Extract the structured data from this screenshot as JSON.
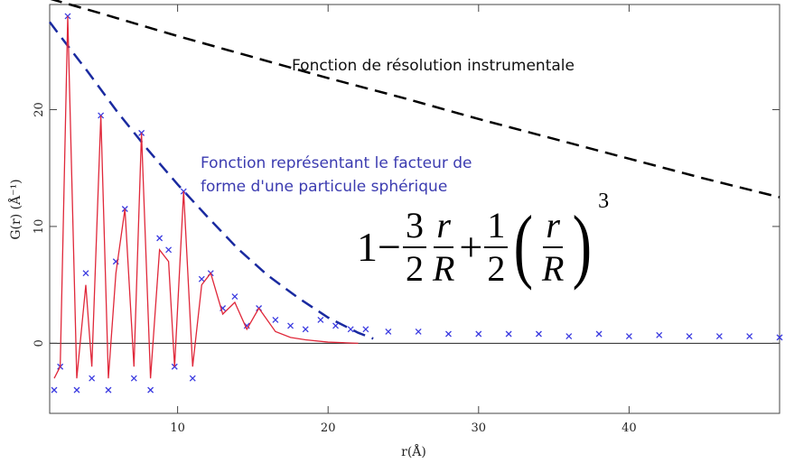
{
  "chart_data": {
    "type": "line",
    "xlabel": "r(Å)",
    "ylabel": "G(r) (Å⁻¹)",
    "xlim": [
      1.5,
      50
    ],
    "ylim": [
      -6,
      29
    ],
    "x_ticks": [
      10,
      20,
      30,
      40
    ],
    "y_ticks": [
      0,
      10,
      20
    ],
    "grid": false,
    "baseline_y": 0,
    "peak_positions": [
      2.7,
      4.9,
      6.5,
      7.6,
      10.4,
      12.2,
      15.4
    ],
    "peak_heights": [
      28,
      19.5,
      11.5,
      18,
      13,
      6,
      3
    ],
    "series": [
      {
        "type": "scatter",
        "marker": "x",
        "color": "#3a3ae0",
        "x": [
          1.8,
          2.2,
          2.7,
          3.3,
          3.9,
          4.3,
          4.9,
          5.4,
          5.9,
          6.5,
          7.1,
          7.6,
          8.2,
          8.8,
          9.4,
          9.8,
          10.4,
          11.0,
          11.6,
          12.2,
          13.0,
          13.8,
          14.6,
          15.4,
          16.5,
          17.5,
          18.5,
          19.5,
          20.5,
          21.5,
          22.5,
          24,
          26,
          28,
          30,
          32,
          34,
          36,
          38,
          40,
          42,
          44,
          46,
          48,
          50
        ],
        "values": [
          -4,
          -2,
          28,
          -4,
          6,
          -3,
          19.5,
          -4,
          7,
          11.5,
          -3,
          18,
          -4,
          9,
          8,
          -2,
          13,
          -3,
          5.5,
          6,
          3,
          4,
          1.5,
          3,
          2,
          1.5,
          1.2,
          2,
          1.5,
          1.2,
          1.2,
          1,
          1,
          0.8,
          0.8,
          0.8,
          0.8,
          0.6,
          0.8,
          0.6,
          0.7,
          0.6,
          0.6,
          0.6,
          0.5
        ]
      },
      {
        "type": "line",
        "color": "#e0283a",
        "x": [
          1.8,
          2.2,
          2.7,
          3.3,
          3.9,
          4.3,
          4.9,
          5.4,
          5.9,
          6.5,
          7.1,
          7.6,
          8.2,
          8.8,
          9.4,
          9.8,
          10.4,
          11.0,
          11.6,
          12.2,
          13.0,
          13.8,
          14.6,
          15.4,
          16.5,
          17.5,
          18.5,
          20,
          22
        ],
        "values": [
          -3,
          -2,
          28,
          -3,
          5,
          -2,
          19.5,
          -3,
          6,
          11.5,
          -2,
          18,
          -3,
          8,
          7,
          -2,
          13,
          -2,
          5,
          6,
          2.5,
          3.5,
          1.2,
          3,
          1,
          0.5,
          0.3,
          0.1,
          0
        ]
      },
      {
        "type": "dashed",
        "color": "#000000",
        "x": [
          1.5,
          5,
          10,
          15,
          20,
          25,
          30,
          35,
          40,
          45,
          50
        ],
        "values": [
          29.5,
          28.2,
          26.3,
          24.5,
          22.7,
          21,
          19.2,
          17.5,
          15.8,
          14.1,
          12.5
        ]
      },
      {
        "type": "dashed",
        "color": "#1a2aa0",
        "x": [
          1.5,
          2.5,
          4,
          6,
          8,
          10,
          12,
          14,
          16,
          18,
          20,
          22,
          23
        ],
        "values": [
          27.5,
          25.8,
          23.3,
          19.8,
          16.6,
          13.6,
          10.8,
          8.1,
          5.8,
          3.9,
          2.2,
          0.9,
          0.4
        ]
      }
    ],
    "annotations": [
      {
        "text": "Fonction de résolution instrumentale",
        "color": "#111111"
      },
      {
        "text": "Fonction représentant le facteur de",
        "color": "#3b3bb0"
      },
      {
        "text": "forme d'une particule sphérique",
        "color": "#3b3bb0"
      }
    ]
  },
  "formula": {
    "one": "1",
    "minus": "−",
    "frac1_num": "3",
    "frac1_den": "2",
    "r1": "r",
    "R1": "R",
    "plus": "+",
    "frac2_num": "1",
    "frac2_den": "2",
    "lparen": "(",
    "r2": "r",
    "R2": "R",
    "rparen": ")",
    "exponent": "3"
  }
}
